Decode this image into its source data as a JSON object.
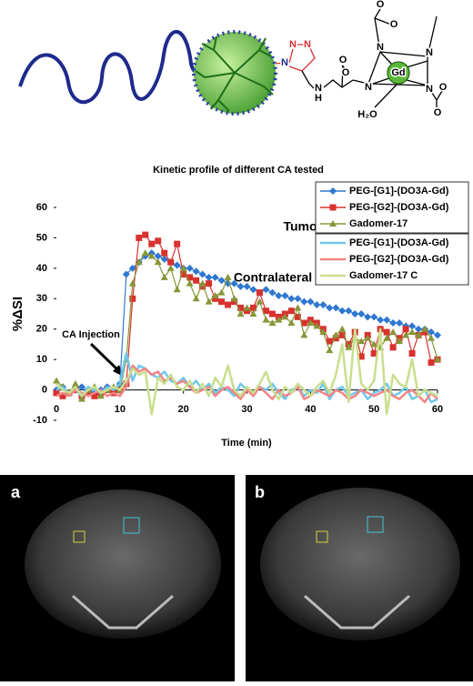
{
  "molecule": {
    "atoms": [
      "N",
      "N",
      "N",
      "N",
      "H",
      "O",
      "O",
      "O",
      "N",
      "N",
      "N",
      "N",
      "Gd",
      "O",
      "O",
      "H₂O",
      "O"
    ]
  },
  "chart_data": {
    "type": "line",
    "title": "Kinetic profile of different CA tested",
    "x_label": "Time (min)",
    "y_label": "%ΔSI",
    "annotations": [
      "Tumour",
      "Contralateral",
      "CA Injection"
    ],
    "xlim": [
      0,
      60
    ],
    "xticks": [
      0,
      10,
      20,
      30,
      40,
      50,
      60
    ],
    "ylim": [
      -10,
      60
    ],
    "yticks": [
      -10,
      0,
      10,
      20,
      30,
      40,
      50,
      60
    ],
    "x": [
      0,
      1,
      2,
      3,
      4,
      5,
      6,
      7,
      8,
      9,
      10,
      11,
      12,
      13,
      14,
      15,
      16,
      17,
      18,
      19,
      20,
      21,
      22,
      23,
      24,
      25,
      26,
      27,
      28,
      29,
      30,
      31,
      32,
      33,
      34,
      35,
      36,
      37,
      38,
      39,
      40,
      41,
      42,
      43,
      44,
      45,
      46,
      47,
      48,
      49,
      50,
      51,
      52,
      53,
      54,
      55,
      56,
      57,
      58,
      59,
      60
    ],
    "series": [
      {
        "name": "PEG-[G1]-(DO3A-Gd)",
        "color": "#2f78d0",
        "marker": "diamond",
        "values": [
          0,
          1,
          -1,
          0,
          1,
          0,
          -1,
          0,
          1,
          0,
          2,
          38,
          40,
          42,
          44,
          45,
          44,
          43,
          42,
          41,
          40,
          40,
          39,
          38,
          37,
          37,
          36,
          35,
          35,
          34,
          34,
          33,
          32,
          33,
          32,
          31,
          31,
          30,
          30,
          29,
          29,
          28,
          28,
          27,
          27,
          26,
          26,
          25,
          25,
          24,
          24,
          23,
          23,
          22,
          22,
          21,
          21,
          20,
          20,
          19,
          18
        ]
      },
      {
        "name": "PEG-[G2]-(DO3A-Gd)",
        "color": "#d8322f",
        "marker": "square",
        "values": [
          -1,
          -2,
          -1,
          0,
          -2,
          -1,
          -2,
          -1,
          0,
          -1,
          0,
          2,
          30,
          50,
          51,
          48,
          49,
          45,
          42,
          48,
          38,
          37,
          36,
          34,
          35,
          30,
          29,
          28,
          29,
          27,
          26,
          27,
          32,
          26,
          25,
          24,
          25,
          26,
          24,
          22,
          23,
          22,
          20,
          16,
          17,
          18,
          15,
          19,
          11,
          18,
          12,
          20,
          19,
          14,
          17,
          20,
          12,
          18,
          19,
          9,
          10
        ]
      },
      {
        "name": "Gadomer-17",
        "color": "#879638",
        "marker": "triangle",
        "values": [
          3,
          1,
          -1,
          2,
          -3,
          0,
          1,
          -2,
          0,
          1,
          0,
          10,
          35,
          42,
          45,
          44,
          42,
          37,
          40,
          33,
          40,
          35,
          30,
          35,
          29,
          31,
          32,
          37,
          30,
          25,
          27,
          25,
          29,
          23,
          22,
          23,
          24,
          22,
          27,
          18,
          22,
          21,
          19,
          13,
          18,
          20,
          14,
          17,
          16,
          17,
          15,
          14,
          17,
          19,
          16,
          18,
          19,
          18,
          20,
          17,
          10
        ]
      },
      {
        "name": "PEG-[G1]-(DO3A-Gd)",
        "color": "#6ec8ec",
        "marker": "none",
        "values": [
          0,
          1,
          -1,
          0,
          -2,
          1,
          0,
          -1,
          1,
          0,
          2,
          12,
          3,
          8,
          7,
          5,
          4,
          6,
          3,
          2,
          4,
          1,
          3,
          0,
          2,
          -1,
          1,
          0,
          -2,
          2,
          0,
          -1,
          1,
          0,
          2,
          -1,
          -3,
          0,
          1,
          -2,
          0,
          -1,
          2,
          -3,
          0,
          1,
          -2,
          -1,
          0,
          -3,
          -1,
          0,
          2,
          -2,
          -1,
          1,
          -3,
          -2,
          0,
          -4,
          -3
        ]
      },
      {
        "name": "PEG-[G2]-(DO3A-Gd)",
        "color": "#f28585",
        "marker": "none",
        "values": [
          -2,
          -1,
          -2,
          0,
          -1,
          -2,
          -1,
          0,
          -2,
          -1,
          -2,
          1,
          8,
          6,
          7,
          5,
          6,
          3,
          4,
          2,
          3,
          1,
          -1,
          0,
          1,
          -2,
          0,
          1,
          -1,
          -3,
          0,
          -2,
          1,
          -1,
          -3,
          0,
          -2,
          -1,
          1,
          -3,
          -2,
          0,
          -1,
          -2,
          0,
          -1,
          -3,
          -2,
          0,
          -1,
          -2,
          -1,
          0,
          -2,
          -3,
          -1,
          0,
          -2,
          -4,
          -1,
          -3
        ]
      },
      {
        "name": "Gadomer-17 C",
        "color": "#c9de8e",
        "marker": "none",
        "values": [
          2,
          0,
          -1,
          1,
          -2,
          0,
          1,
          -1,
          0,
          1,
          0,
          3,
          7,
          5,
          6,
          -8,
          4,
          2,
          5,
          1,
          0,
          3,
          -1,
          2,
          -2,
          4,
          1,
          8,
          0,
          -2,
          1,
          -1,
          2,
          6,
          0,
          -3,
          1,
          -1,
          2,
          0,
          -2,
          1,
          3,
          -1,
          5,
          15,
          -4,
          20,
          2,
          0,
          3,
          20,
          -8,
          5,
          2,
          1,
          10,
          -2,
          0,
          -1,
          -2
        ]
      }
    ]
  },
  "panels": [
    "a",
    "b"
  ]
}
